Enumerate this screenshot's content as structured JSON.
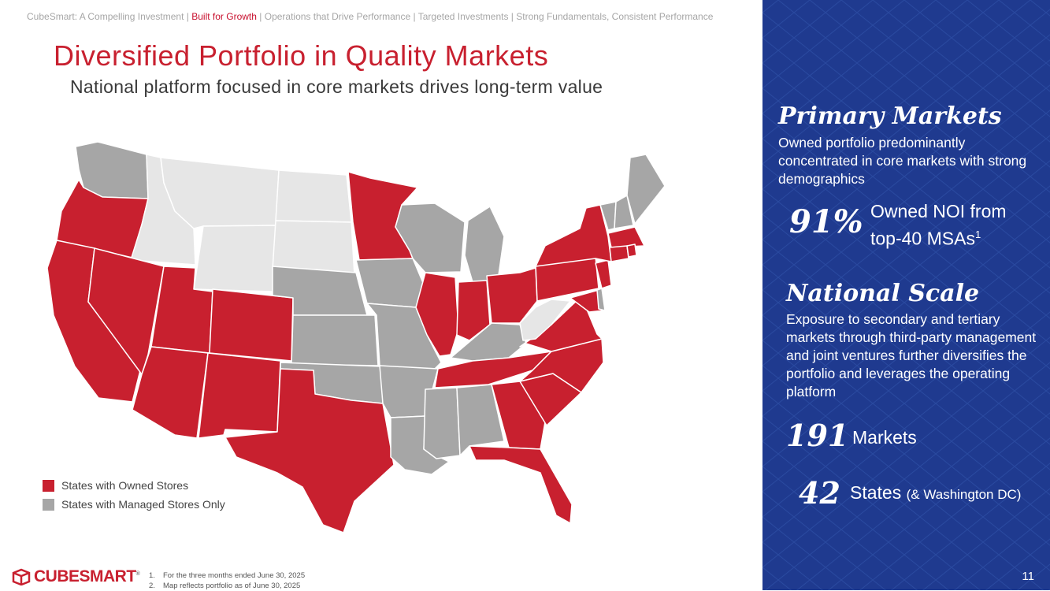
{
  "header": {
    "breadcrumb": {
      "item1": "CubeSmart: A Compelling Investment",
      "sep1": " | ",
      "item2": "Built for Growth",
      "sep2": " | ",
      "item3": "Operations that Drive Performance",
      "sep3": " | ",
      "item4": "Targeted Investments",
      "sep4": " | ",
      "item5": "Strong Fundamentals, Consistent Performance"
    },
    "title": "Diversified Portfolio in Quality Markets",
    "subtitle": "National platform focused in core markets drives long-term value"
  },
  "colors": {
    "owned": "#c8202f",
    "managed": "#a6a6a6",
    "none": "#e6e6e6",
    "panel": "#1f3a8f"
  },
  "legend": {
    "owned_label": "States with Owned Stores",
    "managed_label": "States with Managed Stores Only"
  },
  "right_panel": {
    "primary_title": "Primary Markets",
    "primary_desc": "Owned portfolio predominantly concentrated in core markets with strong demographics",
    "stat_noi_value": "91%",
    "stat_noi_label_line1": "Owned NOI from",
    "stat_noi_label_line2": "top-40 MSAs",
    "stat_noi_sup": "1",
    "national_title": "National Scale",
    "national_desc": "Exposure to secondary and tertiary markets through third-party management and joint ventures further diversifies the portfolio and leverages the operating platform",
    "markets_value": "191",
    "markets_label": "Markets",
    "states_value": "42",
    "states_label": "States",
    "states_sub": "(& Washington DC)"
  },
  "footer": {
    "logo_text": "CUBESMART",
    "logo_tm": "®",
    "note1_num": "1.",
    "note1": "For the three months ended June 30, 2025",
    "note2_num": "2.",
    "note2": "Map reflects portfolio as of June 30, 2025",
    "page_number": "11"
  }
}
